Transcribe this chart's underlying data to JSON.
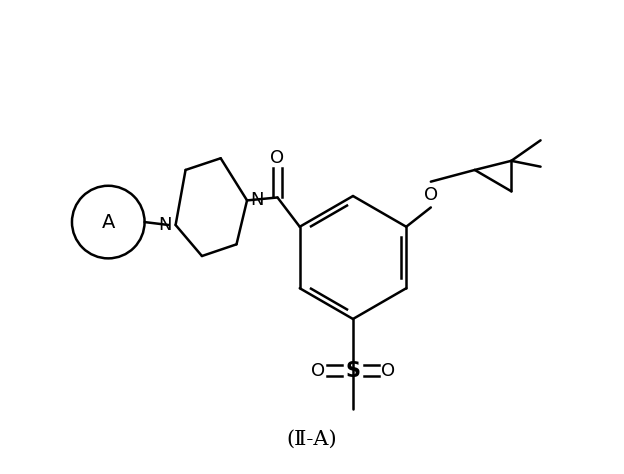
{
  "figure_width": 6.24,
  "figure_height": 4.74,
  "dpi": 100,
  "bg_color": "#ffffff",
  "line_color": "#000000",
  "line_width": 1.8,
  "label_text": "(Ⅱ-A)",
  "label_fontsize": 15,
  "circle_label": "A",
  "circle_fontsize": 14,
  "xlim": [
    0,
    10
  ],
  "ylim": [
    0,
    8
  ]
}
